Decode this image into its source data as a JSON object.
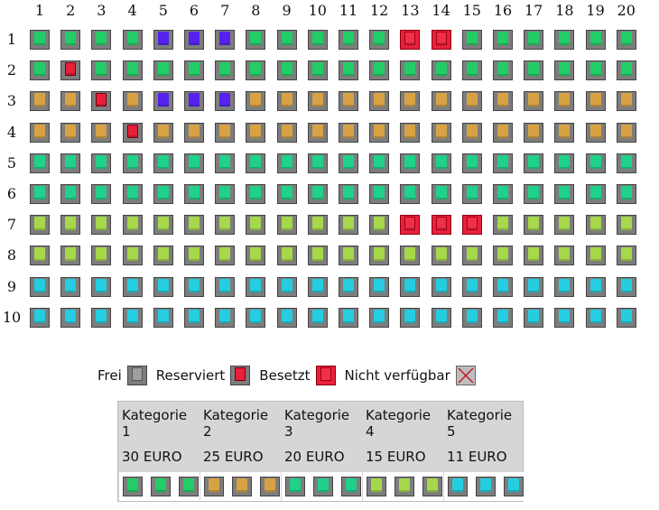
{
  "column_numbers": [
    "1",
    "2",
    "3",
    "4",
    "5",
    "6",
    "7",
    "8",
    "9",
    "10",
    "11",
    "12",
    "13",
    "14",
    "15",
    "16",
    "17",
    "18",
    "19",
    "20"
  ],
  "row_numbers": [
    "1",
    "2",
    "3",
    "4",
    "5",
    "6",
    "7",
    "8",
    "9",
    "10"
  ],
  "colors": {
    "cat1": "#22cc66",
    "cat2": "#d7a244",
    "cat3": "#1fd18a",
    "cat4": "#a6d84a",
    "cat5": "#25cde0",
    "blue": "#5522ee",
    "reserved": "#e8203a",
    "occupied": "#e8203a"
  },
  "seat_rows": [
    [
      "cat1",
      "cat1",
      "cat1",
      "cat1",
      "blue",
      "blue",
      "blue",
      "cat1",
      "cat1",
      "cat1",
      "cat1",
      "cat1",
      "occupied",
      "occupied",
      "cat1",
      "cat1",
      "cat1",
      "cat1",
      "cat1",
      "cat1"
    ],
    [
      "cat1",
      "reserved",
      "cat1",
      "cat1",
      "cat1",
      "cat1",
      "cat1",
      "cat1",
      "cat1",
      "cat1",
      "cat1",
      "cat1",
      "cat1",
      "cat1",
      "cat1",
      "cat1",
      "cat1",
      "cat1",
      "cat1",
      "cat1"
    ],
    [
      "cat2",
      "cat2",
      "reserved",
      "cat2",
      "blue",
      "blue",
      "blue",
      "cat2",
      "cat2",
      "cat2",
      "cat2",
      "cat2",
      "cat2",
      "cat2",
      "cat2",
      "cat2",
      "cat2",
      "cat2",
      "cat2",
      "cat2"
    ],
    [
      "cat2",
      "cat2",
      "cat2",
      "reserved",
      "cat2",
      "cat2",
      "cat2",
      "cat2",
      "cat2",
      "cat2",
      "cat2",
      "cat2",
      "cat2",
      "cat2",
      "cat2",
      "cat2",
      "cat2",
      "cat2",
      "cat2",
      "cat2"
    ],
    [
      "cat3",
      "cat3",
      "cat3",
      "cat3",
      "cat3",
      "cat3",
      "cat3",
      "cat3",
      "cat3",
      "cat3",
      "cat3",
      "cat3",
      "cat3",
      "cat3",
      "cat3",
      "cat3",
      "cat3",
      "cat3",
      "cat3",
      "cat3"
    ],
    [
      "cat3",
      "cat3",
      "cat3",
      "cat3",
      "cat3",
      "cat3",
      "cat3",
      "cat3",
      "cat3",
      "cat3",
      "cat3",
      "cat3",
      "cat3",
      "cat3",
      "cat3",
      "cat3",
      "cat3",
      "cat3",
      "cat3",
      "cat3"
    ],
    [
      "cat4",
      "cat4",
      "cat4",
      "cat4",
      "cat4",
      "cat4",
      "cat4",
      "cat4",
      "cat4",
      "cat4",
      "cat4",
      "cat4",
      "occupied",
      "occupied",
      "occupied",
      "cat4",
      "cat4",
      "cat4",
      "cat4",
      "cat4"
    ],
    [
      "cat4",
      "cat4",
      "cat4",
      "cat4",
      "cat4",
      "cat4",
      "cat4",
      "cat4",
      "cat4",
      "cat4",
      "cat4",
      "cat4",
      "cat4",
      "cat4",
      "cat4",
      "cat4",
      "cat4",
      "cat4",
      "cat4",
      "cat4"
    ],
    [
      "cat5",
      "cat5",
      "cat5",
      "cat5",
      "cat5",
      "cat5",
      "cat5",
      "cat5",
      "cat5",
      "cat5",
      "cat5",
      "cat5",
      "cat5",
      "cat5",
      "cat5",
      "cat5",
      "cat5",
      "cat5",
      "cat5",
      "cat5"
    ],
    [
      "cat5",
      "cat5",
      "cat5",
      "cat5",
      "cat5",
      "cat5",
      "cat5",
      "cat5",
      "cat5",
      "cat5",
      "cat5",
      "cat5",
      "cat5",
      "cat5",
      "cat5",
      "cat5",
      "cat5",
      "cat5",
      "cat5",
      "cat5"
    ]
  ],
  "legend": {
    "free_label": "Frei",
    "reserved_label": "Reserviert",
    "occupied_label": "Besetzt",
    "unavailable_label": "Nicht verfügbar"
  },
  "categories": [
    {
      "name": "Kategorie 1",
      "price": "30 EURO",
      "color": "cat1"
    },
    {
      "name": "Kategorie 2",
      "price": "25 EURO",
      "color": "cat2"
    },
    {
      "name": "Kategorie 3",
      "price": "20 EURO",
      "color": "cat3"
    },
    {
      "name": "Kategorie 4",
      "price": "15 EURO",
      "color": "cat4"
    },
    {
      "name": "Kategorie 5",
      "price": "11 EURO",
      "color": "cat5"
    }
  ]
}
